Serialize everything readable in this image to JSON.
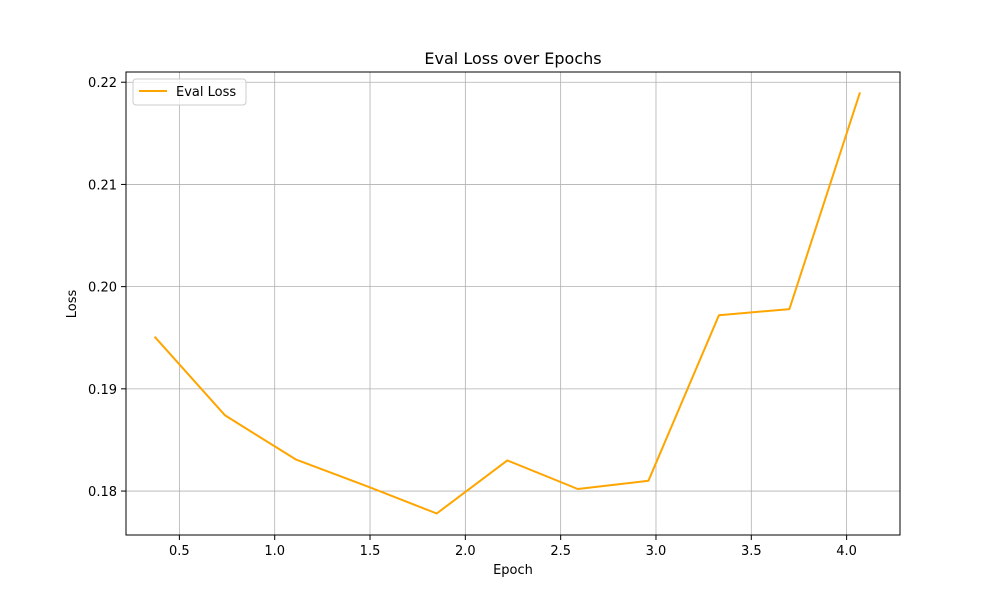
{
  "chart_data": {
    "type": "line",
    "title": "Eval Loss over Epochs",
    "xlabel": "Epoch",
    "ylabel": "Loss",
    "xlim": [
      0.22,
      4.28
    ],
    "ylim": [
      0.1757,
      0.221
    ],
    "xticks": [
      0.5,
      1.0,
      1.5,
      2.0,
      2.5,
      3.0,
      3.5,
      4.0
    ],
    "xtick_labels": [
      "0.5",
      "1.0",
      "1.5",
      "2.0",
      "2.5",
      "3.0",
      "3.5",
      "4.0"
    ],
    "yticks": [
      0.18,
      0.19,
      0.2,
      0.21,
      0.22
    ],
    "ytick_labels": [
      "0.18",
      "0.19",
      "0.20",
      "0.21",
      "0.22"
    ],
    "grid": true,
    "legend": "top-left",
    "series": [
      {
        "name": "Eval Loss",
        "color": "#FFA500",
        "x": [
          0.37,
          0.74,
          1.11,
          1.48,
          1.85,
          2.22,
          2.59,
          2.96,
          3.33,
          3.7,
          4.07
        ],
        "y": [
          0.1951,
          0.1874,
          0.1831,
          0.1805,
          0.1778,
          0.183,
          0.1802,
          0.181,
          0.1972,
          0.1978,
          0.219
        ]
      }
    ]
  }
}
